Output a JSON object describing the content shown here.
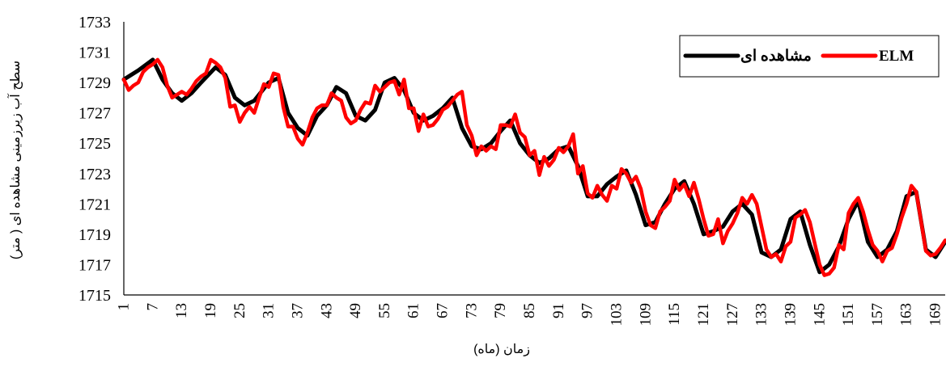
{
  "chart_data": {
    "type": "line",
    "title": "",
    "xlabel": "زمان (ماه)",
    "ylabel": "سطح آب زیرزمینی مشاهده ای ( متر)",
    "ylim": [
      1715,
      1733
    ],
    "yticks": [
      1715,
      1717,
      1719,
      1721,
      1723,
      1725,
      1727,
      1729,
      1731,
      1733
    ],
    "xlim": [
      1,
      171
    ],
    "xticks": [
      1,
      7,
      13,
      19,
      25,
      31,
      37,
      43,
      49,
      55,
      61,
      67,
      73,
      79,
      85,
      91,
      97,
      103,
      109,
      115,
      121,
      127,
      133,
      139,
      145,
      151,
      157,
      163,
      169
    ],
    "grid": false,
    "legend": "top-right",
    "series": [
      {
        "name": "مشاهده ای",
        "color": "#000000",
        "x": [
          1,
          4,
          7,
          9,
          11,
          13,
          15,
          17,
          20,
          22,
          24,
          26,
          28,
          31,
          33,
          35,
          37,
          39,
          41,
          43,
          45,
          47,
          49,
          51,
          53,
          55,
          57,
          59,
          61,
          63,
          65,
          67,
          69,
          71,
          73,
          75,
          77,
          79,
          81,
          83,
          85,
          87,
          89,
          91,
          93,
          95,
          97,
          99,
          101,
          103,
          105,
          107,
          109,
          111,
          113,
          115,
          117,
          119,
          121,
          123,
          125,
          127,
          129,
          131,
          133,
          135,
          137,
          139,
          141,
          143,
          145,
          147,
          149,
          151,
          153,
          155,
          157,
          159,
          161,
          163,
          165,
          167,
          169,
          171
        ],
        "values": [
          1729.2,
          1729.8,
          1730.5,
          1729.2,
          1728.3,
          1727.8,
          1728.3,
          1729.0,
          1730.0,
          1729.5,
          1728.0,
          1727.5,
          1727.8,
          1729.0,
          1729.3,
          1727.0,
          1726.0,
          1725.5,
          1726.8,
          1727.5,
          1728.7,
          1728.3,
          1726.8,
          1726.5,
          1727.2,
          1729.0,
          1729.3,
          1728.5,
          1727.0,
          1726.5,
          1726.8,
          1727.3,
          1728.0,
          1726.0,
          1724.8,
          1724.6,
          1725.0,
          1725.8,
          1726.5,
          1725.0,
          1724.2,
          1723.7,
          1724.0,
          1724.6,
          1724.8,
          1723.5,
          1721.5,
          1721.5,
          1722.3,
          1722.8,
          1723.2,
          1721.6,
          1719.6,
          1719.8,
          1721.0,
          1722.0,
          1722.5,
          1721.0,
          1719.0,
          1719.2,
          1719.5,
          1720.5,
          1721.0,
          1720.3,
          1717.8,
          1717.5,
          1718.0,
          1720.0,
          1720.5,
          1718.3,
          1716.5,
          1717.0,
          1718.2,
          1720.0,
          1721.2,
          1718.5,
          1717.5,
          1718.0,
          1719.2,
          1721.5,
          1721.8,
          1718.0,
          1717.5,
          1718.5
        ]
      },
      {
        "name": "ELM",
        "color": "#ff0000",
        "x": [
          1,
          2,
          3,
          4,
          5,
          6,
          7,
          8,
          9,
          10,
          11,
          12,
          13,
          14,
          15,
          16,
          17,
          18,
          19,
          20,
          21,
          22,
          23,
          24,
          25,
          26,
          27,
          28,
          29,
          30,
          31,
          32,
          33,
          34,
          35,
          36,
          37,
          38,
          39,
          40,
          41,
          42,
          43,
          44,
          45,
          46,
          47,
          48,
          49,
          50,
          51,
          52,
          53,
          54,
          55,
          56,
          57,
          58,
          59,
          60,
          61,
          62,
          63,
          64,
          65,
          66,
          67,
          68,
          69,
          70,
          71,
          72,
          73,
          74,
          75,
          76,
          77,
          78,
          79,
          80,
          81,
          82,
          83,
          84,
          85,
          86,
          87,
          88,
          89,
          90,
          91,
          92,
          93,
          94,
          95,
          96,
          97,
          98,
          99,
          100,
          101,
          102,
          103,
          104,
          105,
          106,
          107,
          108,
          109,
          110,
          111,
          112,
          113,
          114,
          115,
          116,
          117,
          118,
          119,
          120,
          121,
          122,
          123,
          124,
          125,
          126,
          127,
          128,
          129,
          130,
          131,
          132,
          133,
          134,
          135,
          136,
          137,
          138,
          139,
          140,
          141,
          142,
          143,
          144,
          145,
          146,
          147,
          148,
          149,
          150,
          151,
          152,
          153,
          154,
          155,
          156,
          157,
          158,
          159,
          160,
          161,
          162,
          163,
          164,
          165,
          166,
          167,
          168,
          169,
          170,
          171
        ],
        "values": [
          1729.2,
          1728.5,
          1728.8,
          1729.0,
          1729.7,
          1730.0,
          1730.2,
          1730.5,
          1730.0,
          1728.8,
          1728.0,
          1728.2,
          1728.4,
          1728.2,
          1728.6,
          1729.1,
          1729.4,
          1729.6,
          1730.5,
          1730.3,
          1730.0,
          1729.3,
          1727.4,
          1727.5,
          1726.4,
          1727.0,
          1727.4,
          1727.0,
          1728.0,
          1728.9,
          1728.7,
          1729.6,
          1729.5,
          1727.4,
          1726.1,
          1726.1,
          1725.3,
          1724.9,
          1725.7,
          1726.7,
          1727.3,
          1727.5,
          1727.5,
          1728.3,
          1728.0,
          1727.8,
          1726.7,
          1726.3,
          1726.5,
          1727.2,
          1727.7,
          1727.6,
          1728.8,
          1728.4,
          1728.7,
          1729.0,
          1729.1,
          1728.2,
          1729.2,
          1727.3,
          1727.3,
          1725.8,
          1726.9,
          1726.1,
          1726.2,
          1726.6,
          1727.2,
          1727.4,
          1727.8,
          1728.2,
          1728.4,
          1726.2,
          1725.5,
          1724.2,
          1724.8,
          1724.5,
          1724.8,
          1724.6,
          1726.2,
          1726.2,
          1726.1,
          1726.9,
          1725.7,
          1725.4,
          1724.2,
          1724.5,
          1722.9,
          1724.1,
          1723.5,
          1723.9,
          1724.7,
          1724.4,
          1724.8,
          1725.6,
          1723.0,
          1723.5,
          1721.7,
          1721.4,
          1722.2,
          1721.6,
          1721.2,
          1722.2,
          1722.0,
          1723.3,
          1723.0,
          1722.4,
          1722.8,
          1722.0,
          1720.5,
          1719.6,
          1719.4,
          1720.5,
          1720.8,
          1721.2,
          1722.6,
          1721.9,
          1722.3,
          1721.5,
          1722.4,
          1721.3,
          1720.0,
          1718.9,
          1719.0,
          1720.0,
          1718.4,
          1719.2,
          1719.7,
          1720.4,
          1721.4,
          1721.0,
          1721.6,
          1721.0,
          1719.5,
          1718.0,
          1717.5,
          1717.7,
          1717.2,
          1718.2,
          1718.5,
          1720.1,
          1720.3,
          1720.6,
          1719.8,
          1718.4,
          1717.0,
          1716.3,
          1716.4,
          1716.8,
          1718.3,
          1718.0,
          1720.4,
          1721.0,
          1721.4,
          1720.5,
          1719.3,
          1718.3,
          1717.9,
          1717.2,
          1717.9,
          1718.1,
          1719.0,
          1720.1,
          1721.0,
          1722.2,
          1721.8,
          1719.9,
          1717.9,
          1717.6,
          1717.7,
          1718.1,
          1718.6
        ]
      }
    ]
  }
}
